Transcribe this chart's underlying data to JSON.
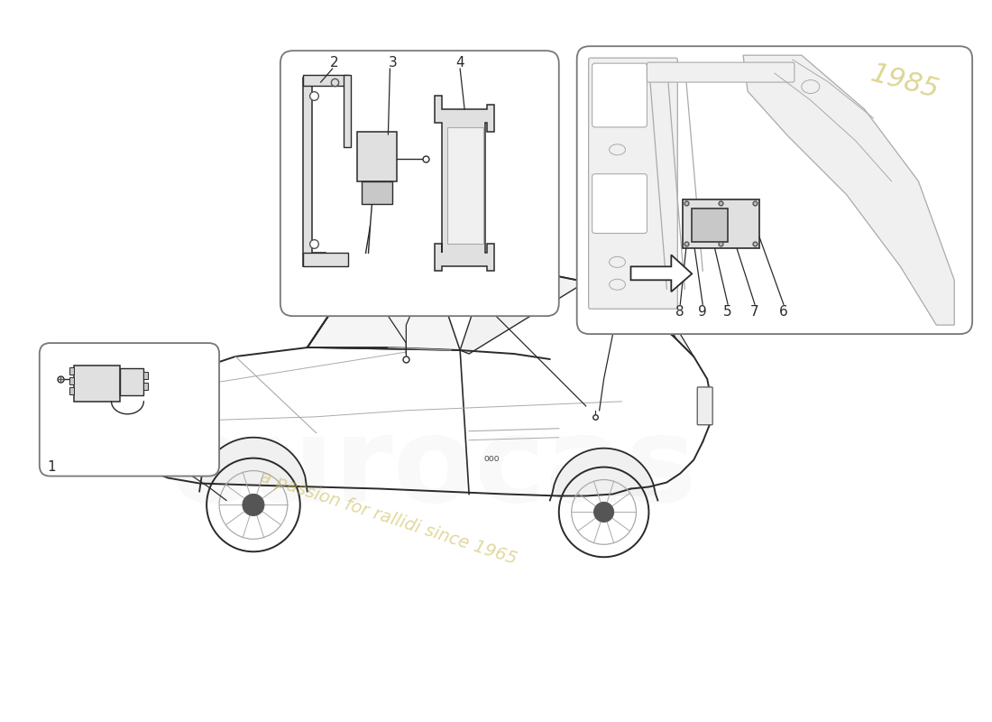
{
  "bg_color": "#ffffff",
  "line_color": "#2a2a2a",
  "mid_line_color": "#555555",
  "light_line_color": "#aaaaaa",
  "very_light_color": "#cccccc",
  "box_border_color": "#777777",
  "fill_light": "#f0f0f0",
  "fill_mid": "#e0e0e0",
  "fill_dark": "#c8c8c8",
  "watermark_color": "#c8ba50",
  "watermark_alpha": 0.55,
  "watermark_text": "a passion for rallidi since 1965",
  "logo_text": "eurocas",
  "logo_alpha": 0.18,
  "year_text": "1985",
  "part_labels_box2": [
    "2",
    "3",
    "4"
  ],
  "part_labels_box3": [
    "8",
    "9",
    "5",
    "7",
    "6"
  ],
  "part_label_box1": "1"
}
